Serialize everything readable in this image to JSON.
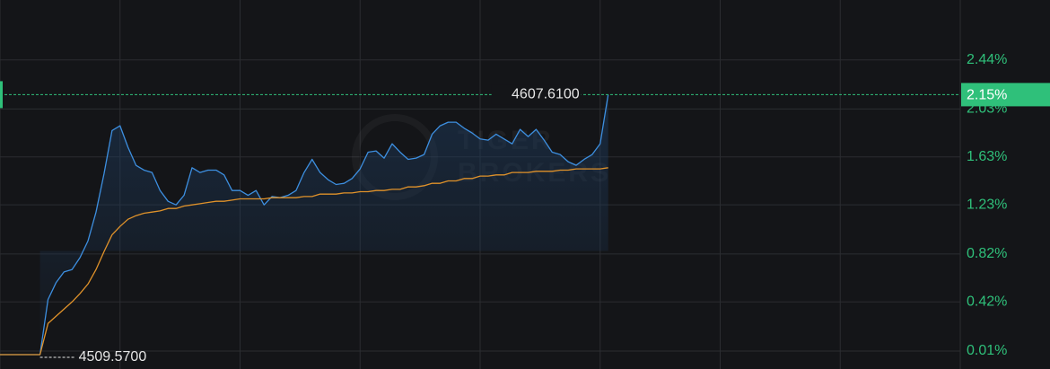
{
  "chart_data": {
    "type": "line",
    "watermark": [
      "TIGER",
      "BROKERS"
    ],
    "high_label": "4607.6100",
    "low_label": "4509.5700",
    "current_label": "2.15%",
    "xlim": [
      0,
      120
    ],
    "xticks": [
      0,
      15,
      30,
      45,
      60,
      75,
      90,
      105,
      120
    ],
    "ylim": [
      -0.14,
      2.94
    ],
    "yticks": [
      {
        "value": 0.01,
        "label": "0.01%"
      },
      {
        "value": 0.42,
        "label": "0.42%"
      },
      {
        "value": 0.82,
        "label": "0.82%"
      },
      {
        "value": 1.23,
        "label": "1.23%"
      },
      {
        "value": 1.63,
        "label": "1.63%"
      },
      {
        "value": 2.03,
        "label": "2.03%"
      },
      {
        "value": 2.44,
        "label": "2.44%"
      }
    ],
    "grid": true,
    "series": [
      {
        "color": "#3d8fe0",
        "values": [
          -0.02,
          -0.02,
          -0.02,
          -0.02,
          -0.02,
          -0.02,
          0.44,
          0.58,
          0.67,
          0.69,
          0.79,
          0.93,
          1.17,
          1.49,
          1.85,
          1.89,
          1.71,
          1.56,
          1.52,
          1.5,
          1.35,
          1.26,
          1.23,
          1.31,
          1.54,
          1.5,
          1.52,
          1.52,
          1.48,
          1.35,
          1.35,
          1.31,
          1.35,
          1.23,
          1.3,
          1.29,
          1.31,
          1.35,
          1.5,
          1.61,
          1.5,
          1.44,
          1.4,
          1.41,
          1.45,
          1.53,
          1.67,
          1.68,
          1.62,
          1.74,
          1.67,
          1.61,
          1.62,
          1.65,
          1.82,
          1.89,
          1.92,
          1.92,
          1.87,
          1.83,
          1.78,
          1.77,
          1.82,
          1.78,
          1.74,
          1.86,
          1.8,
          1.86,
          1.77,
          1.67,
          1.65,
          1.59,
          1.56,
          1.61,
          1.65,
          1.74,
          2.15
        ]
      },
      {
        "color": "#e0922a",
        "values": [
          -0.02,
          -0.02,
          -0.02,
          -0.02,
          -0.02,
          -0.02,
          0.24,
          0.3,
          0.36,
          0.42,
          0.49,
          0.57,
          0.69,
          0.84,
          0.98,
          1.05,
          1.11,
          1.14,
          1.16,
          1.17,
          1.18,
          1.2,
          1.2,
          1.22,
          1.23,
          1.24,
          1.25,
          1.26,
          1.26,
          1.27,
          1.28,
          1.28,
          1.28,
          1.28,
          1.29,
          1.29,
          1.29,
          1.29,
          1.3,
          1.3,
          1.32,
          1.32,
          1.32,
          1.33,
          1.33,
          1.34,
          1.34,
          1.35,
          1.35,
          1.36,
          1.36,
          1.38,
          1.38,
          1.39,
          1.41,
          1.41,
          1.43,
          1.43,
          1.45,
          1.45,
          1.47,
          1.47,
          1.48,
          1.48,
          1.5,
          1.5,
          1.5,
          1.51,
          1.51,
          1.51,
          1.52,
          1.52,
          1.53,
          1.53,
          1.53,
          1.53,
          1.54
        ]
      }
    ]
  }
}
